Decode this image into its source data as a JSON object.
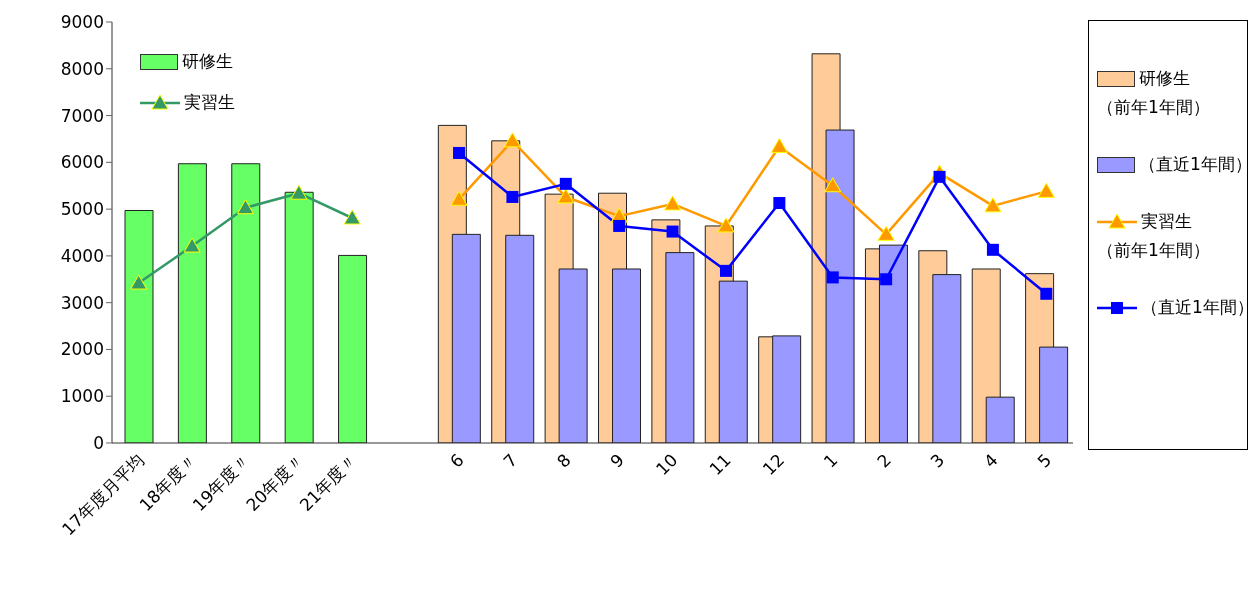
{
  "chart_data": {
    "type": "bar",
    "categories": [
      "17年度月平均",
      "18年度〃",
      "19年度〃",
      "20年度〃",
      "21年度〃",
      null,
      "6",
      "7",
      "8",
      "9",
      "10",
      "11",
      "12",
      "1",
      "2",
      "3",
      "4",
      "5"
    ],
    "series": [
      {
        "name": "研修生",
        "color": "#66ff66",
        "values": [
          4970,
          5970,
          5970,
          5360,
          4010,
          null,
          null,
          null,
          null,
          null,
          null,
          null,
          null,
          null,
          null,
          null,
          null,
          null
        ]
      },
      {
        "name": "実習生",
        "type": "line",
        "color": "#339966",
        "marker": "triangle",
        "values": [
          3420,
          4210,
          5030,
          5340,
          4810,
          null,
          null,
          null,
          null,
          null,
          null,
          null,
          null,
          null,
          null,
          null,
          null,
          null
        ]
      },
      {
        "name": "研修生（前年1年間）",
        "color": "#ffcc99",
        "values": [
          null,
          null,
          null,
          null,
          null,
          null,
          6790,
          6460,
          5320,
          5340,
          4770,
          4640,
          2270,
          8320,
          4150,
          4110,
          3720,
          3620
        ]
      },
      {
        "name": "（直近1年間）",
        "color": "#9999ff",
        "values": [
          null,
          null,
          null,
          null,
          null,
          null,
          4460,
          4440,
          3720,
          3720,
          4070,
          3460,
          2290,
          6690,
          4230,
          3600,
          980,
          2050
        ]
      },
      {
        "name": "実習生（前年1年間）",
        "type": "line",
        "color": "#ff9900",
        "marker": "triangle",
        "values": [
          null,
          null,
          null,
          null,
          null,
          null,
          5210,
          6460,
          5260,
          4850,
          5110,
          4640,
          6340,
          5500,
          4460,
          5770,
          5070,
          5380
        ]
      },
      {
        "name": "（直近1年間）",
        "type": "line",
        "color": "#0000ff",
        "marker": "square",
        "values": [
          null,
          null,
          null,
          null,
          null,
          null,
          6200,
          5260,
          5540,
          4640,
          4520,
          3680,
          5130,
          3540,
          3500,
          5690,
          4130,
          3190
        ]
      }
    ],
    "ylim": [
      0,
      9000
    ],
    "yticks": [
      0,
      1000,
      2000,
      3000,
      4000,
      5000,
      6000,
      7000,
      8000,
      9000
    ],
    "grid": false,
    "legend": "right"
  }
}
